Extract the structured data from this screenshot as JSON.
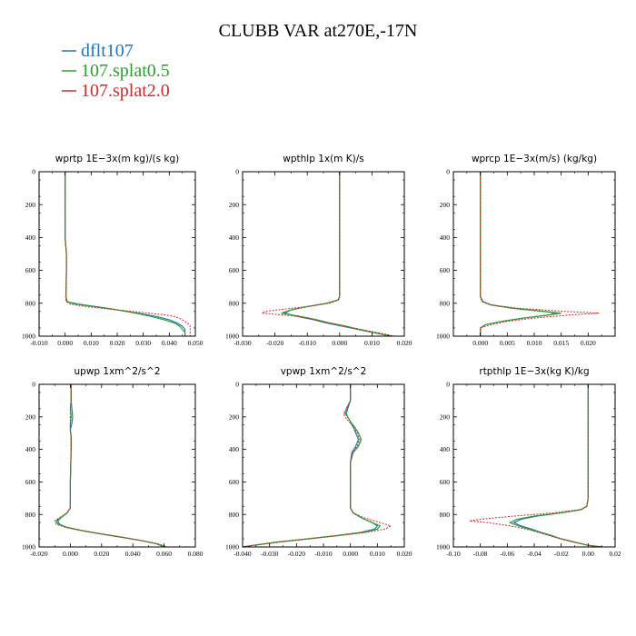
{
  "title": "CLUBB VAR at270E,-17N",
  "legend": [
    {
      "label": "dflt107",
      "color": "#1f77b4"
    },
    {
      "label": "107.splat0.5",
      "color": "#2ca02c"
    },
    {
      "label": "107.splat2.0",
      "color": "#d62728"
    }
  ],
  "chart_data": [
    {
      "type": "line",
      "title": "wprtp   1E−3x(m kg)/(s kg)",
      "xlim": [
        -0.01,
        0.05
      ],
      "xticks": [
        "-0.010",
        "0.000",
        "0.010",
        "0.020",
        "0.030",
        "0.040",
        "0.050"
      ],
      "ylim": [
        1000,
        0
      ],
      "yticks": [
        "0",
        "200",
        "400",
        "600",
        "800",
        "1000"
      ],
      "series": [
        {
          "name": "dflt107",
          "levels": [
            0,
            200,
            400,
            500,
            600,
            700,
            760,
            790,
            805,
            820,
            840,
            860,
            880,
            900,
            920,
            940,
            960,
            975,
            990,
            1000
          ],
          "values": [
            0,
            0,
            0,
            0.0005,
            0.0005,
            0.0004,
            0.0003,
            0.0008,
            0.005,
            0.012,
            0.02,
            0.028,
            0.035,
            0.04,
            0.043,
            0.045,
            0.046,
            0.046,
            0.046,
            0.046
          ]
        },
        {
          "name": "107.splat0.5",
          "levels": [
            0,
            200,
            400,
            500,
            600,
            700,
            760,
            790,
            805,
            820,
            840,
            860,
            880,
            900,
            920,
            940,
            960,
            975,
            990,
            1000
          ],
          "values": [
            0,
            0,
            0,
            0.0005,
            0.0005,
            0.0004,
            0.0003,
            0.0006,
            0.004,
            0.011,
            0.02,
            0.027,
            0.033,
            0.038,
            0.042,
            0.044,
            0.045,
            0.046,
            0.046,
            0.046
          ]
        },
        {
          "name": "107.splat2.0",
          "levels": [
            0,
            200,
            400,
            500,
            600,
            700,
            760,
            790,
            805,
            820,
            840,
            860,
            870,
            880,
            900,
            920,
            940,
            960,
            975,
            990,
            1000
          ],
          "values": [
            0,
            0,
            0,
            0.0005,
            0.0005,
            0.0004,
            0.0003,
            0.0004,
            0.002,
            0.008,
            0.02,
            0.032,
            0.038,
            0.042,
            0.045,
            0.047,
            0.048,
            0.048,
            0.048,
            0.048,
            0.048
          ]
        }
      ]
    },
    {
      "type": "line",
      "title": "wpthlp   1x(m K)/s",
      "xlim": [
        -0.03,
        0.02
      ],
      "xticks": [
        "-0.030",
        "-0.020",
        "-0.010",
        "0.000",
        "0.010",
        "0.020"
      ],
      "ylim": [
        1000,
        0
      ],
      "yticks": [
        "0",
        "200",
        "400",
        "600",
        "800",
        "1000"
      ],
      "series": [
        {
          "name": "dflt107",
          "levels": [
            0,
            200,
            400,
            600,
            700,
            760,
            780,
            800,
            820,
            840,
            860,
            880,
            900,
            920,
            940,
            960,
            980,
            1000
          ],
          "values": [
            0,
            0,
            0,
            0,
            0,
            0,
            -0.0005,
            -0.004,
            -0.01,
            -0.015,
            -0.017,
            -0.013,
            -0.008,
            -0.004,
            0.001,
            0.006,
            0.011,
            0.016
          ]
        },
        {
          "name": "107.splat0.5",
          "levels": [
            0,
            200,
            400,
            600,
            700,
            760,
            780,
            800,
            820,
            840,
            860,
            880,
            900,
            920,
            940,
            960,
            980,
            1000
          ],
          "values": [
            0,
            0,
            0,
            0,
            0,
            0,
            -0.0005,
            -0.004,
            -0.01,
            -0.015,
            -0.018,
            -0.012,
            -0.007,
            -0.003,
            0.002,
            0.006,
            0.011,
            0.016
          ]
        },
        {
          "name": "107.splat2.0",
          "levels": [
            0,
            200,
            400,
            600,
            700,
            760,
            780,
            800,
            820,
            840,
            850,
            860,
            870,
            880,
            900,
            920,
            940,
            960,
            980,
            1000
          ],
          "values": [
            0,
            0,
            0,
            0,
            0,
            0,
            -0.0003,
            -0.003,
            -0.01,
            -0.019,
            -0.023,
            -0.024,
            -0.018,
            -0.013,
            -0.008,
            -0.003,
            0.002,
            0.007,
            0.012,
            0.017
          ]
        }
      ]
    },
    {
      "type": "line",
      "title": "wprcp   1E−3x(m/s) (kg/kg)",
      "xlim": [
        -0.005,
        0.025
      ],
      "xticks": [
        "0.000",
        "0.005",
        "0.010",
        "0.015",
        "0.020"
      ],
      "ylim": [
        1000,
        0
      ],
      "yticks": [
        "0",
        "200",
        "400",
        "600",
        "800",
        "1000"
      ],
      "series": [
        {
          "name": "dflt107",
          "levels": [
            0,
            200,
            400,
            500,
            600,
            700,
            760,
            790,
            810,
            830,
            850,
            860,
            870,
            890,
            910,
            930,
            950,
            970,
            1000
          ],
          "values": [
            0,
            0,
            0,
            0,
            0,
            0,
            0,
            0.0005,
            0.002,
            0.006,
            0.012,
            0.014,
            0.013,
            0.008,
            0.004,
            0.001,
            0.0,
            0.0,
            0.0
          ]
        },
        {
          "name": "107.splat0.5",
          "levels": [
            0,
            200,
            400,
            500,
            600,
            700,
            760,
            790,
            810,
            830,
            850,
            860,
            870,
            890,
            910,
            930,
            950,
            970,
            1000
          ],
          "values": [
            0,
            0,
            0,
            0,
            0,
            0,
            0,
            0.0004,
            0.002,
            0.006,
            0.012,
            0.015,
            0.013,
            0.008,
            0.004,
            0.001,
            0.0,
            0.0,
            0.0
          ]
        },
        {
          "name": "107.splat2.0",
          "levels": [
            0,
            200,
            400,
            500,
            600,
            700,
            760,
            790,
            810,
            830,
            850,
            860,
            870,
            890,
            910,
            930,
            950,
            970,
            1000
          ],
          "values": [
            0,
            0,
            0,
            0,
            0,
            0,
            0,
            0.0003,
            0.002,
            0.007,
            0.016,
            0.022,
            0.017,
            0.01,
            0.005,
            0.002,
            0.0,
            0.0,
            0.0
          ]
        }
      ]
    },
    {
      "type": "line",
      "title": "upwp   1xm^2/s^2",
      "xlim": [
        -0.02,
        0.08
      ],
      "xticks": [
        "-0.020",
        "0.000",
        "0.020",
        "0.040",
        "0.060",
        "0.080"
      ],
      "ylim": [
        1000,
        0
      ],
      "yticks": [
        "0",
        "200",
        "400",
        "600",
        "800",
        "1000"
      ],
      "series": [
        {
          "name": "dflt107",
          "levels": [
            0,
            100,
            150,
            200,
            240,
            280,
            320,
            400,
            600,
            700,
            760,
            790,
            820,
            840,
            860,
            880,
            900,
            920,
            940,
            960,
            980,
            1000
          ],
          "values": [
            0.0005,
            0.0005,
            0.001,
            0.0015,
            0.001,
            0.0,
            0.0005,
            0.0005,
            0.0,
            0.0,
            0.0,
            -0.002,
            -0.006,
            -0.008,
            -0.007,
            -0.002,
            0.008,
            0.02,
            0.033,
            0.045,
            0.055,
            0.06
          ]
        },
        {
          "name": "107.splat0.5",
          "levels": [
            0,
            100,
            150,
            200,
            240,
            280,
            320,
            400,
            600,
            700,
            760,
            790,
            820,
            840,
            860,
            880,
            900,
            920,
            940,
            960,
            980,
            1000
          ],
          "values": [
            0.0005,
            0.0005,
            0.0,
            0.0005,
            0.0,
            0.0,
            0.0005,
            0.0005,
            0.0,
            0.0,
            0.0,
            -0.002,
            -0.006,
            -0.009,
            -0.008,
            -0.002,
            0.008,
            0.02,
            0.033,
            0.045,
            0.055,
            0.061
          ]
        },
        {
          "name": "107.splat2.0",
          "levels": [
            0,
            100,
            150,
            200,
            240,
            280,
            320,
            400,
            600,
            700,
            760,
            790,
            820,
            840,
            860,
            880,
            900,
            920,
            940,
            960,
            980,
            1000
          ],
          "values": [
            0.0005,
            0.0005,
            0.0,
            0.0,
            0.0,
            0.0,
            0.0005,
            0.0005,
            0.0,
            0.0,
            0.0,
            -0.002,
            -0.007,
            -0.01,
            -0.009,
            -0.003,
            0.007,
            0.019,
            0.032,
            0.045,
            0.056,
            0.062
          ]
        }
      ]
    },
    {
      "type": "line",
      "title": "vpwp   1xm^2/s^2",
      "xlim": [
        -0.04,
        0.02
      ],
      "xticks": [
        "-0.040",
        "-0.030",
        "-0.020",
        "-0.010",
        "0.000",
        "0.010",
        "0.020"
      ],
      "ylim": [
        1000,
        0
      ],
      "yticks": [
        "0",
        "200",
        "400",
        "600",
        "800",
        "1000"
      ],
      "series": [
        {
          "name": "dflt107",
          "levels": [
            0,
            100,
            150,
            180,
            200,
            230,
            260,
            300,
            340,
            380,
            420,
            480,
            600,
            700,
            760,
            790,
            820,
            850,
            870,
            890,
            910,
            930,
            950,
            970,
            990,
            1000
          ],
          "values": [
            0,
            0,
            -0.001,
            -0.0015,
            -0.001,
            0.0,
            0.001,
            0.002,
            0.003,
            0.002,
            0.0005,
            0.0,
            0.0,
            0.0,
            0.0,
            0.001,
            0.004,
            0.008,
            0.01,
            0.009,
            0.004,
            -0.005,
            -0.016,
            -0.027,
            -0.036,
            -0.04
          ]
        },
        {
          "name": "107.splat0.5",
          "levels": [
            0,
            100,
            150,
            180,
            200,
            230,
            260,
            300,
            340,
            380,
            420,
            480,
            600,
            700,
            760,
            790,
            820,
            850,
            870,
            890,
            910,
            930,
            950,
            970,
            990,
            1000
          ],
          "values": [
            0,
            0,
            -0.0015,
            -0.002,
            -0.001,
            0.0,
            0.0015,
            0.003,
            0.004,
            0.003,
            0.001,
            0.0,
            0.0,
            0.0,
            0.0,
            0.001,
            0.004,
            0.008,
            0.011,
            0.01,
            0.005,
            -0.005,
            -0.016,
            -0.027,
            -0.036,
            -0.04
          ]
        },
        {
          "name": "107.splat2.0",
          "levels": [
            0,
            100,
            150,
            180,
            200,
            230,
            260,
            300,
            340,
            380,
            420,
            480,
            600,
            700,
            760,
            790,
            820,
            850,
            870,
            890,
            910,
            930,
            950,
            970,
            990,
            1000
          ],
          "values": [
            0,
            0,
            -0.0015,
            -0.0025,
            -0.002,
            -0.0005,
            0.001,
            0.0025,
            0.0035,
            0.0025,
            0.001,
            0.0,
            0.0,
            0.0,
            0.0,
            0.001,
            0.005,
            0.011,
            0.015,
            0.013,
            0.006,
            -0.004,
            -0.015,
            -0.026,
            -0.036,
            -0.04
          ]
        }
      ]
    },
    {
      "type": "line",
      "title": "rtpthlp   1E−3x(kg K)/kg",
      "xlim": [
        -0.1,
        0.02
      ],
      "xticks": [
        "-0.10",
        "-0.08",
        "-0.06",
        "-0.04",
        "-0.02",
        "0.00",
        "0.02"
      ],
      "ylim": [
        1000,
        0
      ],
      "yticks": [
        "0",
        "200",
        "400",
        "600",
        "800",
        "1000"
      ],
      "series": [
        {
          "name": "dflt107",
          "levels": [
            0,
            200,
            400,
            600,
            700,
            750,
            770,
            790,
            810,
            830,
            850,
            870,
            890,
            910,
            930,
            950,
            970,
            990,
            1000
          ],
          "values": [
            0,
            0,
            0,
            0,
            0,
            -0.001,
            -0.005,
            -0.02,
            -0.038,
            -0.05,
            -0.055,
            -0.05,
            -0.042,
            -0.035,
            -0.027,
            -0.02,
            -0.01,
            0.0,
            0.01
          ]
        },
        {
          "name": "107.splat0.5",
          "levels": [
            0,
            200,
            400,
            600,
            700,
            750,
            770,
            790,
            810,
            830,
            850,
            870,
            890,
            910,
            930,
            950,
            970,
            990,
            1000
          ],
          "values": [
            0,
            0,
            0,
            0,
            0,
            -0.001,
            -0.005,
            -0.02,
            -0.04,
            -0.053,
            -0.058,
            -0.052,
            -0.044,
            -0.036,
            -0.028,
            -0.02,
            -0.01,
            0.0,
            0.01
          ]
        },
        {
          "name": "107.splat2.0",
          "levels": [
            0,
            200,
            400,
            600,
            700,
            750,
            770,
            790,
            810,
            830,
            840,
            850,
            870,
            890,
            910,
            930,
            950,
            970,
            990,
            1000
          ],
          "values": [
            0,
            0,
            0,
            0,
            0,
            -0.001,
            -0.006,
            -0.025,
            -0.055,
            -0.08,
            -0.088,
            -0.075,
            -0.058,
            -0.046,
            -0.037,
            -0.029,
            -0.021,
            -0.011,
            0.0,
            0.011
          ]
        }
      ]
    }
  ]
}
